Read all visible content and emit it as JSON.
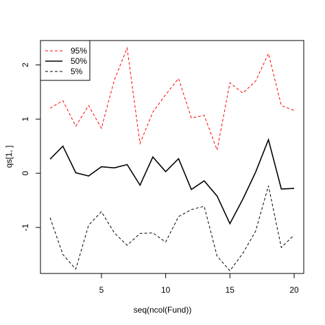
{
  "chart_data": {
    "type": "line",
    "xlabel": "seq(ncol(Fund))",
    "ylabel": "qs[1, ]",
    "xlim": [
      1,
      20
    ],
    "ylim": [
      -1.85,
      2.45
    ],
    "x_ticks": [
      5,
      10,
      15,
      20
    ],
    "y_ticks": [
      -1,
      0,
      1,
      2
    ],
    "grid": false,
    "legend_position": "top-left",
    "x": [
      1,
      2,
      3,
      4,
      5,
      6,
      7,
      8,
      9,
      10,
      11,
      12,
      13,
      14,
      15,
      16,
      17,
      18,
      19,
      20
    ],
    "series": [
      {
        "name": "95%",
        "color": "#ff0000",
        "line_style": "dashed",
        "values": [
          1.2,
          1.34,
          0.87,
          1.25,
          0.83,
          1.72,
          2.31,
          0.55,
          1.13,
          1.45,
          1.75,
          1.02,
          1.07,
          0.43,
          1.67,
          1.48,
          1.7,
          2.21,
          1.25,
          1.16
        ]
      },
      {
        "name": "50%",
        "color": "#000000",
        "line_style": "solid",
        "values": [
          0.26,
          0.5,
          0.01,
          -0.05,
          0.12,
          0.1,
          0.16,
          -0.22,
          0.3,
          0.03,
          0.27,
          -0.3,
          -0.14,
          -0.42,
          -0.93,
          -0.48,
          0.02,
          0.62,
          -0.29,
          -0.28
        ]
      },
      {
        "name": "5%",
        "color": "#000000",
        "line_style": "dashed",
        "values": [
          -0.82,
          -1.5,
          -1.77,
          -0.96,
          -0.71,
          -1.1,
          -1.33,
          -1.11,
          -1.1,
          -1.27,
          -0.8,
          -0.67,
          -0.61,
          -1.53,
          -1.8,
          -1.48,
          -1.07,
          -0.23,
          -1.37,
          -1.14
        ]
      }
    ]
  }
}
